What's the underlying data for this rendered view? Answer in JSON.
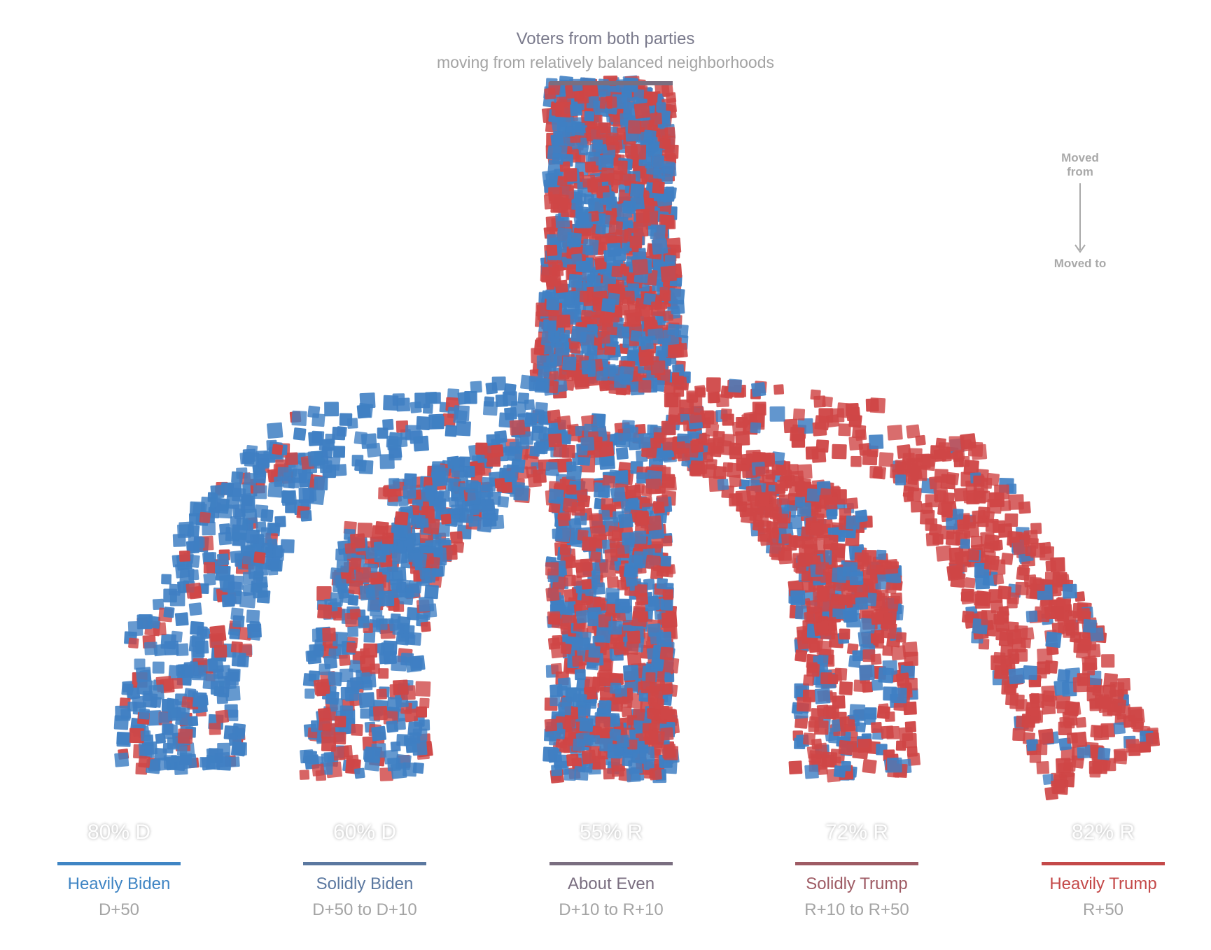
{
  "header": {
    "title": "Voters from both parties",
    "subtitle": "moving from relatively balanced neighborhoods"
  },
  "legend": {
    "from_label": "Moved from",
    "to_label": "Moved to"
  },
  "colors": {
    "dem": "#3f7fc3",
    "rep": "#cf4646",
    "cat_heavily_biden": "#3f85c4",
    "cat_solidly_biden": "#5b78a0",
    "cat_about_even": "#7a6e80",
    "cat_solidly_trump": "#9e5b64",
    "cat_heavily_trump": "#c44949"
  },
  "chart_data": {
    "type": "flow",
    "source": "About Even",
    "categories": [
      {
        "name": "Heavily Biden",
        "range": "D+50",
        "label": "80% D",
        "party": "D",
        "share": 80
      },
      {
        "name": "Solidly Biden",
        "range": "D+50 to D+10",
        "label": "60% D",
        "party": "D",
        "share": 60
      },
      {
        "name": "About Even",
        "range": "D+10 to R+10",
        "label": "55% R",
        "party": "R",
        "share": 55
      },
      {
        "name": "Solidly Trump",
        "range": "R+10 to R+50",
        "label": "72% R",
        "party": "R",
        "share": 72
      },
      {
        "name": "Heavily Trump",
        "range": "R+50",
        "label": "82% R",
        "party": "R",
        "share": 82
      }
    ]
  }
}
